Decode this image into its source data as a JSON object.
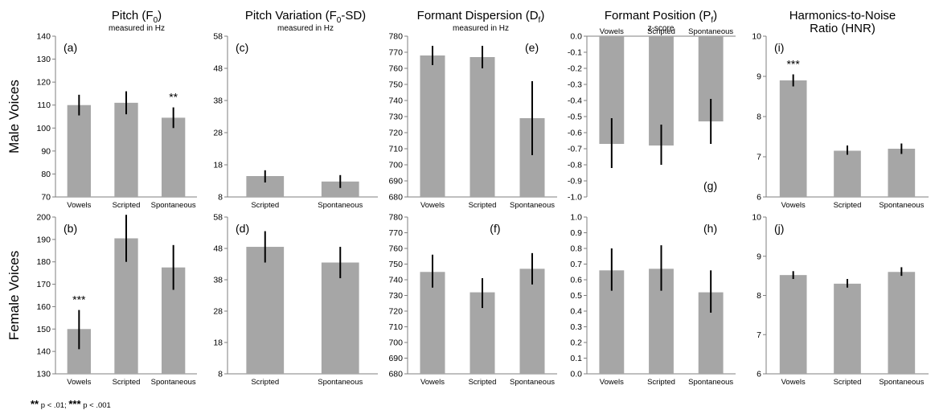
{
  "figure": {
    "row_labels": [
      "Male Voices",
      "Female Voices"
    ],
    "columns": [
      {
        "title": "Pitch (F",
        "title_sub": "0",
        "title_end": ")",
        "subtitle": "measured in Hz"
      },
      {
        "title": "Pitch Variation (F",
        "title_sub": "0",
        "title_end": "-SD)",
        "subtitle": "measured in Hz"
      },
      {
        "title": "Formant Dispersion (D",
        "title_sub": "f",
        "title_end": ")",
        "subtitle": "measured in Hz"
      },
      {
        "title": "Formant Position (P",
        "title_sub": "f",
        "title_end": ")",
        "subtitle": "z-score"
      },
      {
        "title": "Harmonics-to-Noise",
        "title_sub": "",
        "title_end": "",
        "title_line2": "Ratio (HNR)",
        "subtitle": ""
      }
    ],
    "footnote": {
      "sym1": "**",
      "text1": "p < .01;",
      "sym2": "***",
      "text2": "p < .001"
    }
  },
  "chart_data": [
    {
      "type": "bar",
      "panel": "(a)",
      "row": "Male Voices",
      "column": "Pitch (F0)",
      "categories": [
        "Vowels",
        "Scripted",
        "Spontaneous"
      ],
      "values": [
        110,
        111,
        104.5
      ],
      "errors_low": [
        105.5,
        106,
        100
      ],
      "errors_high": [
        114.5,
        116,
        109
      ],
      "ylim": [
        70,
        140
      ],
      "yticks": [
        70,
        80,
        90,
        100,
        110,
        120,
        130,
        140
      ],
      "significance": [
        {
          "category": "Spontaneous",
          "label": "**"
        }
      ]
    },
    {
      "type": "bar",
      "panel": "(b)",
      "row": "Female Voices",
      "column": "Pitch (F0)",
      "categories": [
        "Vowels",
        "Scripted",
        "Spontaneous"
      ],
      "values": [
        150,
        190.5,
        177.5
      ],
      "errors_low": [
        141,
        180,
        167.5
      ],
      "errors_high": [
        158.5,
        201,
        187.5
      ],
      "ylim": [
        130,
        200
      ],
      "yticks": [
        130,
        140,
        150,
        160,
        170,
        180,
        190,
        200
      ],
      "significance": [
        {
          "category": "Vowels",
          "label": "***"
        }
      ]
    },
    {
      "type": "bar",
      "panel": "(c)",
      "row": "Male Voices",
      "column": "Pitch Variation (F0-SD)",
      "categories": [
        "Scripted",
        "Spontaneous"
      ],
      "values": [
        14.5,
        12.8
      ],
      "errors_low": [
        12.5,
        10.8
      ],
      "errors_high": [
        16.3,
        14.8
      ],
      "ylim": [
        8,
        58
      ],
      "yticks": [
        8,
        18,
        28,
        38,
        48,
        58
      ],
      "significance": []
    },
    {
      "type": "bar",
      "panel": "(d)",
      "row": "Female Voices",
      "column": "Pitch Variation (F0-SD)",
      "categories": [
        "Scripted",
        "Spontaneous"
      ],
      "values": [
        48.5,
        43.5
      ],
      "errors_low": [
        43.5,
        38.5
      ],
      "errors_high": [
        53.5,
        48.5
      ],
      "ylim": [
        8,
        58
      ],
      "yticks": [
        8,
        18,
        28,
        38,
        48,
        58
      ],
      "significance": []
    },
    {
      "type": "bar",
      "panel": "(e)",
      "row": "Male Voices",
      "column": "Formant Dispersion (Df)",
      "categories": [
        "Vowels",
        "Scripted",
        "Spontaneous"
      ],
      "values": [
        768,
        767,
        729
      ],
      "errors_low": [
        762,
        760,
        706
      ],
      "errors_high": [
        774,
        774,
        752
      ],
      "ylim": [
        680,
        780
      ],
      "yticks": [
        680,
        690,
        700,
        710,
        720,
        730,
        740,
        750,
        760,
        770,
        780
      ],
      "significance": []
    },
    {
      "type": "bar",
      "panel": "(f)",
      "row": "Female Voices",
      "column": "Formant Dispersion (Df)",
      "categories": [
        "Vowels",
        "Scripted",
        "Spontaneous"
      ],
      "values": [
        745,
        732,
        747
      ],
      "errors_low": [
        735,
        722,
        737
      ],
      "errors_high": [
        756,
        741,
        757
      ],
      "ylim": [
        680,
        780
      ],
      "yticks": [
        680,
        690,
        700,
        710,
        720,
        730,
        740,
        750,
        760,
        770,
        780
      ],
      "significance": []
    },
    {
      "type": "bar",
      "panel": "(g)",
      "row": "Male Voices",
      "column": "Formant Position (Pf)",
      "categories": [
        "Vowels",
        "Scripted",
        "Spontaneous"
      ],
      "values": [
        -0.67,
        -0.68,
        -0.53
      ],
      "errors_low": [
        -0.82,
        -0.8,
        -0.67
      ],
      "errors_high": [
        -0.51,
        -0.55,
        -0.39
      ],
      "ylim": [
        -1.0,
        0.0
      ],
      "yticks": [
        "-1.0",
        "-0.9",
        "-0.8",
        "-0.7",
        "-0.6",
        "-0.5",
        "-0.4",
        "-0.3",
        "-0.2",
        "-0.1",
        "0.0"
      ],
      "category_labels_position": "top",
      "significance": []
    },
    {
      "type": "bar",
      "panel": "(h)",
      "row": "Female Voices",
      "column": "Formant Position (Pf)",
      "categories": [
        "Vowels",
        "Scripted",
        "Spontaneous"
      ],
      "values": [
        0.66,
        0.67,
        0.52
      ],
      "errors_low": [
        0.53,
        0.53,
        0.39
      ],
      "errors_high": [
        0.8,
        0.82,
        0.66
      ],
      "ylim": [
        0.0,
        1.0
      ],
      "yticks": [
        "0.0",
        "0.1",
        "0.2",
        "0.3",
        "0.4",
        "0.5",
        "0.6",
        "0.7",
        "0.8",
        "0.9",
        "1.0"
      ],
      "significance": []
    },
    {
      "type": "bar",
      "panel": "(i)",
      "row": "Male Voices",
      "column": "Harmonics-to-Noise Ratio (HNR)",
      "categories": [
        "Vowels",
        "Scripted",
        "Spontaneous"
      ],
      "values": [
        8.9,
        7.15,
        7.2
      ],
      "errors_low": [
        8.75,
        7.05,
        7.07
      ],
      "errors_high": [
        9.05,
        7.28,
        7.33
      ],
      "ylim": [
        6,
        10
      ],
      "yticks": [
        6,
        7,
        8,
        9,
        10
      ],
      "significance": [
        {
          "category": "Vowels",
          "label": "***"
        }
      ]
    },
    {
      "type": "bar",
      "panel": "(j)",
      "row": "Female Voices",
      "column": "Harmonics-to-Noise Ratio (HNR)",
      "categories": [
        "Vowels",
        "Scripted",
        "Spontaneous"
      ],
      "values": [
        8.52,
        8.3,
        8.6
      ],
      "errors_low": [
        8.42,
        8.2,
        8.5
      ],
      "errors_high": [
        8.62,
        8.42,
        8.72
      ],
      "ylim": [
        6,
        10
      ],
      "yticks": [
        6,
        7,
        8,
        9,
        10
      ],
      "significance": []
    }
  ]
}
